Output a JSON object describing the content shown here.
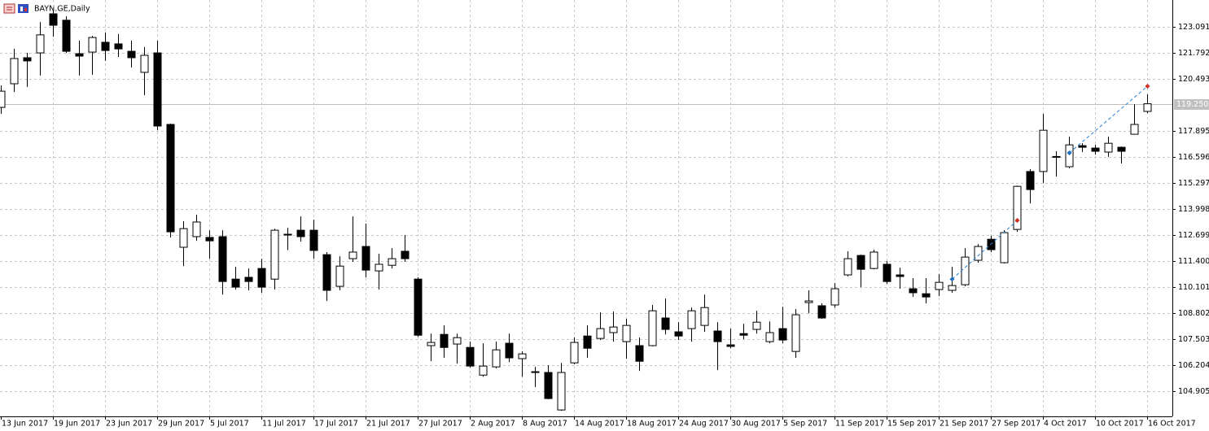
{
  "chart_data": {
    "type": "candlestick",
    "title": "BAYN.GE,Daily",
    "categories": [
      "13 Jun 2017",
      null,
      null,
      null,
      "19 Jun 2017",
      null,
      null,
      null,
      "23 Jun 2017",
      null,
      null,
      null,
      "29 Jun 2017",
      null,
      null,
      null,
      "5 Jul 2017",
      null,
      null,
      null,
      "11 Jul 2017",
      null,
      null,
      null,
      "17 Jul 2017",
      null,
      null,
      null,
      "21 Jul 2017",
      null,
      null,
      null,
      "27 Jul 2017",
      null,
      null,
      null,
      "2 Aug 2017",
      null,
      null,
      null,
      "8 Aug 2017",
      null,
      null,
      null,
      "14 Aug 2017",
      null,
      null,
      null,
      "18 Aug 2017",
      null,
      null,
      null,
      "24 Aug 2017",
      null,
      null,
      null,
      "30 Aug 2017",
      null,
      null,
      null,
      "5 Sep 2017",
      null,
      null,
      null,
      "11 Sep 2017",
      null,
      null,
      null,
      "15 Sep 2017",
      null,
      null,
      null,
      "21 Sep 2017",
      null,
      null,
      null,
      "27 Sep 2017",
      null,
      null,
      null,
      "4 Oct 2017",
      null,
      null,
      null,
      "10 Oct 2017",
      null,
      null,
      null,
      "16 Oct 2017"
    ],
    "open": [
      119.07,
      120.25,
      121.55,
      121.79,
      123.74,
      123.42,
      121.75,
      121.83,
      122.32,
      122.24,
      121.87,
      120.82,
      121.79,
      118.22,
      112.09,
      112.62,
      112.58,
      112.62,
      110.5,
      110.59,
      111.03,
      110.5,
      112.7,
      112.94,
      112.94,
      111.72,
      110.14,
      111.52,
      112.13,
      110.91,
      111.19,
      111.89,
      110.5,
      107.18,
      107.74,
      107.26,
      107.09,
      105.71,
      106.12,
      107.3,
      106.53,
      105.88,
      105.84,
      103.97,
      106.32,
      107.66,
      107.54,
      107.83,
      107.38,
      107.18,
      107.18,
      108.56,
      107.87,
      108.03,
      108.19,
      107.91,
      107.22,
      107.78,
      107.99,
      107.38,
      108.03,
      106.89,
      109.33,
      109.17,
      109.21,
      110.71,
      111.68,
      111.03,
      111.24,
      110.71,
      110.02,
      109.77,
      109.98,
      109.94,
      110.22,
      111.44,
      112.49,
      111.32,
      112.98,
      115.87,
      115.87,
      116.59,
      116.11,
      117.16,
      117.04,
      116.84,
      117.08,
      117.73,
      118.87
    ],
    "high": [
      120.17,
      122.0,
      121.79,
      123.33,
      123.94,
      123.62,
      122.4,
      122.64,
      122.81,
      122.73,
      122.4,
      122.08,
      122.4,
      118.26,
      113.39,
      113.71,
      112.94,
      112.94,
      111.11,
      111.03,
      111.52,
      113.02,
      113.06,
      113.63,
      113.47,
      111.85,
      111.64,
      113.63,
      113.27,
      111.76,
      112.05,
      112.7,
      110.59,
      107.78,
      108.19,
      107.78,
      107.38,
      107.3,
      107.38,
      107.78,
      106.89,
      106.12,
      106.2,
      106.32,
      107.58,
      108.19,
      108.84,
      108.88,
      108.52,
      107.58,
      109.21,
      109.53,
      108.35,
      109.08,
      109.73,
      108.35,
      108.03,
      108.27,
      108.92,
      108.39,
      109.12,
      109.0,
      109.94,
      109.29,
      110.3,
      111.89,
      111.72,
      111.97,
      111.4,
      111.07,
      110.55,
      110.55,
      110.75,
      111.11,
      112.05,
      112.25,
      112.66,
      112.94,
      115.17,
      115.99,
      118.75,
      116.88,
      117.61,
      117.28,
      117.2,
      117.61,
      117.12,
      119.23,
      119.72
    ],
    "low": [
      118.75,
      119.84,
      120.09,
      120.66,
      122.6,
      121.79,
      120.66,
      120.7,
      121.39,
      121.59,
      121.06,
      119.68,
      117.93,
      112.58,
      111.15,
      112.41,
      111.52,
      109.73,
      109.98,
      109.94,
      109.82,
      109.98,
      111.95,
      112.37,
      111.52,
      109.41,
      109.94,
      111.36,
      110.59,
      109.98,
      111.03,
      111.36,
      107.62,
      106.4,
      106.57,
      106.28,
      106.08,
      105.63,
      106.04,
      106.36,
      105.63,
      105.11,
      104.5,
      103.93,
      106.24,
      106.57,
      107.46,
      107.38,
      106.53,
      105.92,
      107.14,
      107.74,
      107.46,
      107.38,
      107.87,
      105.96,
      107.05,
      107.5,
      107.78,
      107.3,
      107.3,
      106.57,
      108.8,
      108.52,
      109.08,
      110.63,
      110.1,
      110.99,
      110.26,
      110.02,
      109.61,
      109.29,
      109.65,
      109.82,
      110.14,
      111.32,
      111.85,
      111.28,
      112.86,
      114.28,
      115.3,
      115.62,
      116.03,
      116.84,
      116.72,
      116.6,
      116.27,
      117.73,
      118.79
    ],
    "close": [
      119.88,
      121.51,
      121.39,
      122.69,
      123.17,
      121.87,
      121.63,
      122.56,
      121.91,
      121.99,
      121.55,
      121.67,
      118.14,
      112.86,
      113.02,
      113.35,
      112.41,
      110.38,
      110.1,
      110.38,
      110.1,
      112.94,
      112.74,
      112.62,
      111.93,
      109.94,
      111.15,
      111.85,
      110.95,
      111.24,
      111.52,
      111.52,
      107.7,
      107.34,
      107.09,
      107.58,
      106.16,
      106.16,
      106.97,
      106.57,
      106.77,
      105.86,
      104.54,
      105.84,
      107.34,
      107.05,
      108.03,
      108.11,
      108.19,
      106.4,
      108.92,
      107.99,
      107.66,
      108.92,
      109.08,
      107.38,
      107.14,
      107.7,
      108.35,
      107.83,
      107.46,
      108.72,
      109.41,
      108.56,
      110.02,
      111.52,
      110.99,
      111.85,
      110.38,
      110.63,
      109.82,
      109.61,
      110.34,
      110.18,
      111.6,
      112.13,
      111.97,
      112.82,
      115.13,
      114.97,
      117.93,
      116.62,
      117.2,
      117.08,
      116.88,
      117.28,
      116.88,
      118.22,
      119.25
    ],
    "ylim": [
      103.65,
      124.43
    ],
    "yticks": [
      123.091,
      121.792,
      120.493,
      117.895,
      116.596,
      115.297,
      113.998,
      112.699,
      {
        "value": 111.4,
        "label": "111.400"
      },
      110.101,
      108.802,
      107.503,
      106.204,
      104.905
    ],
    "last_price": {
      "value": 119.25,
      "label": "119.250"
    },
    "trades": [
      {
        "open_index": 73,
        "open_price": 110.5,
        "close_index": 78,
        "close_price": 113.43
      },
      {
        "open_index": 82,
        "open_price": 116.8,
        "close_index": 88,
        "close_price": 120.13
      }
    ],
    "up_color": "#ffffff",
    "down_color": "#000000",
    "grid": true
  }
}
